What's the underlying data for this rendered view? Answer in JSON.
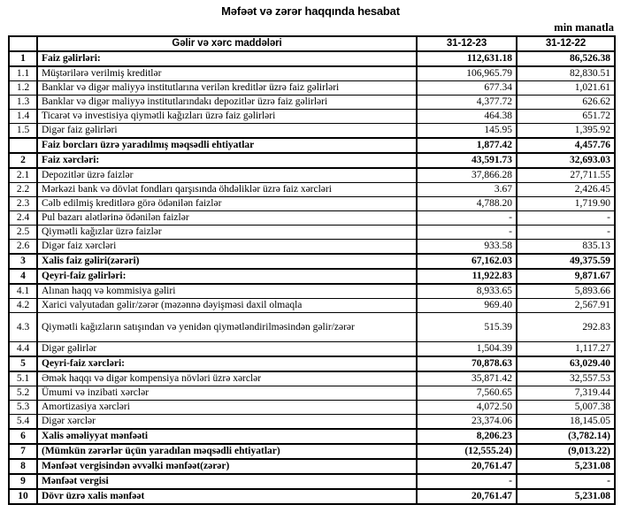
{
  "page": {
    "title": "Məfəət və zərər haqqında hesabat",
    "unit_note": "min manatla"
  },
  "colors": {
    "background": "#ffffff",
    "text": "#000000",
    "border": "#000000"
  },
  "table": {
    "headers": {
      "num": "",
      "item": "Gəlir və xərc maddələri",
      "period1": "31-12-23",
      "period2": "31-12-22"
    },
    "rows": [
      {
        "num": "1",
        "item": "Faiz gəlirləri:",
        "v1": "112,631.18",
        "v2": "86,526.38",
        "bold": true
      },
      {
        "num": "1.1",
        "item": "Müştərilərə verilmiş kreditlər",
        "v1": "106,965.79",
        "v2": "82,830.51",
        "bold": false
      },
      {
        "num": "1.2",
        "item": "Banklar və digər maliyyə institutlarına verilən kreditlər üzrə faiz gəlirləri",
        "v1": "677.34",
        "v2": "1,021.61",
        "bold": false
      },
      {
        "num": "1.3",
        "item": "Banklar və digər maliyyə institutlarındakı depozitlər üzrə faiz gəlirləri",
        "v1": "4,377.72",
        "v2": "626.62",
        "bold": false
      },
      {
        "num": "1.4",
        "item": "Ticarət və investisiya qiymətli kağızları üzrə faiz gəlirləri",
        "v1": "464.38",
        "v2": "651.72",
        "bold": false
      },
      {
        "num": "1.5",
        "item": "Digər faiz gəlirləri",
        "v1": "145.95",
        "v2": "1,395.92",
        "bold": false
      },
      {
        "num": "",
        "item": "Faiz borcları üzrə yaradılmış məqsədli ehtiyatlar",
        "v1": "1,877.42",
        "v2": "4,457.76",
        "bold": true
      },
      {
        "num": "2",
        "item": "Faiz xərcləri:",
        "v1": "43,591.73",
        "v2": "32,693.03",
        "bold": true
      },
      {
        "num": "2.1",
        "item": "Depozitlər üzrə faizlər",
        "v1": "37,866.28",
        "v2": "27,711.55",
        "bold": false
      },
      {
        "num": "2.2",
        "item": "Mərkəzi bank və dövlət fondları qarşısında öhdəliklər üzrə faiz xərcləri",
        "v1": "3.67",
        "v2": "2,426.45",
        "bold": false
      },
      {
        "num": "2.3",
        "item": "Cəlb edilmiş kreditlərə görə ödənilən faizlər",
        "v1": "4,788.20",
        "v2": "1,719.90",
        "bold": false
      },
      {
        "num": "2.4",
        "item": "Pul bazarı alətlərinə ödənilən faizlər",
        "v1": "-",
        "v2": "-",
        "bold": false
      },
      {
        "num": "2.5",
        "item": "Qiymətli kağızlar üzrə faizlər",
        "v1": "-",
        "v2": "-",
        "bold": false
      },
      {
        "num": "2.6",
        "item": "Digər faiz xərcləri",
        "v1": "933.58",
        "v2": "835.13",
        "bold": false
      },
      {
        "num": "3",
        "item": "Xalis faiz gəliri(zərəri)",
        "v1": "67,162.03",
        "v2": "49,375.59",
        "bold": true
      },
      {
        "num": "4",
        "item": "Qeyri-faiz gəlirləri:",
        "v1": "11,922.83",
        "v2": "9,871.67",
        "bold": true
      },
      {
        "num": "4.1",
        "item": "Alınan haqq və kommisiya gəliri",
        "v1": "8,933.65",
        "v2": "5,893.66",
        "bold": false
      },
      {
        "num": "4.2",
        "item": "Xarici valyutadan gəlir/zərər (məzənnə dəyişməsi daxil olmaqla",
        "v1": "969.40",
        "v2": "2,567.91",
        "bold": false
      },
      {
        "num": "4.3",
        "item": "Qiymətli kağızların satışından və yenidən qiymətləndirilməsindən gəlir/zərər",
        "v1": "515.39",
        "v2": "292.83",
        "bold": false,
        "tall": true
      },
      {
        "num": "4.4",
        "item": "Digər gəlirlər",
        "v1": "1,504.39",
        "v2": "1,117.27",
        "bold": false
      },
      {
        "num": "5",
        "item": "Qeyri-faiz xərcləri:",
        "v1": "70,878.63",
        "v2": "63,029.40",
        "bold": true
      },
      {
        "num": "5.1",
        "item": "Əmək haqqı və digər kompensiya növləri üzrə xərclər",
        "v1": "35,871.42",
        "v2": "32,557.53",
        "bold": false
      },
      {
        "num": "5.2",
        "item": "Ümumi və inzibati xərclər",
        "v1": "7,560.65",
        "v2": "7,319.44",
        "bold": false
      },
      {
        "num": "5.3",
        "item": "Amortizasiya xərcləri",
        "v1": "4,072.50",
        "v2": "5,007.38",
        "bold": false
      },
      {
        "num": "5.4",
        "item": "Digər xərclər",
        "v1": "23,374.06",
        "v2": "18,145.05",
        "bold": false
      },
      {
        "num": "6",
        "item": "Xalis əməliyyat mənfəəti",
        "v1": "8,206.23",
        "v2": "(3,782.14)",
        "bold": true
      },
      {
        "num": "7",
        "item": "(Mümkün zərərlər üçün yaradılan məqsədli ehtiyatlar)",
        "v1": "(12,555.24)",
        "v2": "(9,013.22)",
        "bold": true
      },
      {
        "num": "8",
        "item": "Mənfəət vergisindən əvvəlki mənfəət(zərər)",
        "v1": "20,761.47",
        "v2": "5,231.08",
        "bold": true
      },
      {
        "num": "9",
        "item": "Mənfəət vergisi",
        "v1": "-",
        "v2": "-",
        "bold": true
      },
      {
        "num": "10",
        "item": "Dövr üzrə xalis mənfəət",
        "v1": "20,761.47",
        "v2": "5,231.08",
        "bold": true
      }
    ]
  }
}
